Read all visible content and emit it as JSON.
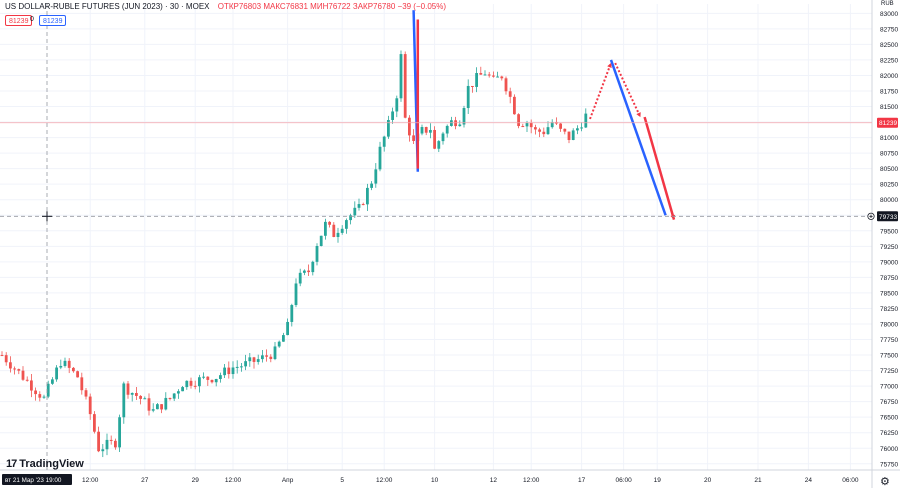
{
  "header": {
    "symbol": "US DOLLAR-RUBLE FUTURES (JUN 2023) · 30 · MOEX",
    "open_label": "ОТКР",
    "open": "76803",
    "high_label": "МАКС",
    "high": "76831",
    "low_label": "МИН",
    "low": "76722",
    "close_label": "ЗАКР",
    "close": "76780",
    "change": "−39 (−0.05%)",
    "bid": "81239",
    "spread": "0",
    "ask": "81239"
  },
  "branding": {
    "logo_text": "TradingView",
    "logo_mark": "17"
  },
  "colors": {
    "up": "#26a69a",
    "down": "#ef5350",
    "blue_line": "#2962ff",
    "red_line": "#f23645",
    "price_label": "#f23645",
    "crosshair_label": "#131722"
  },
  "chart_data": {
    "type": "candlestick",
    "symbol": "US DOLLAR-RUBLE FUTURES (JUN 2023)",
    "interval": "30",
    "exchange": "MOEX",
    "currency": "RUB",
    "ylim": [
      75650,
      83150
    ],
    "y_ticks": [
      "83000",
      "82750",
      "82500",
      "82250",
      "82000",
      "81750",
      "81500",
      "81250",
      "81000",
      "80750",
      "80500",
      "80250",
      "80000",
      "79750",
      "79500",
      "79250",
      "79000",
      "78750",
      "78500",
      "78250",
      "78000",
      "77750",
      "77500",
      "77250",
      "77000",
      "76750",
      "76500",
      "76250",
      "76000",
      "75750"
    ],
    "x_ticks": [
      "12:00",
      "27",
      "29",
      "12:00",
      "Апр",
      "5",
      "12:00",
      "10",
      "12",
      "12:00",
      "17",
      "06:00",
      "19",
      "20",
      "21",
      "24",
      "06:00"
    ],
    "x_tick_index": [
      21,
      34,
      46,
      55,
      68,
      81,
      91,
      103,
      117,
      126,
      138,
      148,
      156,
      168,
      180,
      192,
      202
    ],
    "crosshair_time_label": "вт 21 Мар '23   19:00",
    "last_price_label": "81239",
    "crosshair_price_label": "79733",
    "last_price": 81239,
    "crosshair_price": 79733,
    "n_bars": 140,
    "closes_path": [
      [
        0,
        77500
      ],
      [
        5,
        77150
      ],
      [
        10,
        76800
      ],
      [
        14,
        77400
      ],
      [
        18,
        77150
      ],
      [
        21,
        76550
      ],
      [
        23,
        76000
      ],
      [
        27,
        76100
      ],
      [
        29,
        77000
      ],
      [
        33,
        76800
      ],
      [
        36,
        76600
      ],
      [
        40,
        76800
      ],
      [
        43,
        77050
      ],
      [
        47,
        77100
      ],
      [
        51,
        77150
      ],
      [
        55,
        77300
      ],
      [
        58,
        77350
      ],
      [
        62,
        77450
      ],
      [
        65,
        77550
      ],
      [
        68,
        77950
      ],
      [
        70,
        78700
      ],
      [
        73,
        78850
      ],
      [
        75,
        79300
      ],
      [
        77,
        79600
      ],
      [
        79,
        79450
      ],
      [
        82,
        79700
      ],
      [
        85,
        79850
      ],
      [
        88,
        80300
      ],
      [
        90,
        80800
      ],
      [
        92,
        81200
      ],
      [
        94,
        81700
      ],
      [
        95,
        82300
      ],
      [
        96,
        81300
      ],
      [
        98,
        80900
      ],
      [
        100,
        81100
      ],
      [
        102,
        81150
      ],
      [
        103,
        80800
      ],
      [
        105,
        81100
      ],
      [
        107,
        81250
      ],
      [
        109,
        81300
      ],
      [
        111,
        81800
      ],
      [
        113,
        81950
      ],
      [
        115,
        82050
      ],
      [
        117,
        81900
      ],
      [
        119,
        82000
      ],
      [
        121,
        81650
      ],
      [
        123,
        81250
      ],
      [
        125,
        81250
      ],
      [
        127,
        81100
      ],
      [
        129,
        81100
      ],
      [
        131,
        81250
      ],
      [
        133,
        81100
      ],
      [
        135,
        81000
      ],
      [
        137,
        81150
      ],
      [
        139,
        81350
      ]
    ],
    "projection": {
      "blue_lines": [
        {
          "from": {
            "bar": 98,
            "price": 83050
          },
          "to": {
            "bar": 99,
            "price": 80450
          }
        },
        {
          "from": {
            "bar": 145,
            "price": 82250
          },
          "to": {
            "bar": 158,
            "price": 79750
          }
        }
      ],
      "red_lines": [
        {
          "from": {
            "bar": 99,
            "price": 82900
          },
          "to": {
            "bar": 99,
            "price": 80500
          }
        },
        {
          "from": {
            "bar": 153,
            "price": 81330
          },
          "to": {
            "bar": 160,
            "price": 79680
          }
        }
      ],
      "red_dotted": [
        {
          "from": {
            "bar": 140,
            "price": 81300
          },
          "to": {
            "bar": 145,
            "price": 82200
          }
        },
        {
          "from": {
            "bar": 146,
            "price": 82200
          },
          "to": {
            "bar": 152,
            "price": 81330
          }
        }
      ]
    }
  }
}
